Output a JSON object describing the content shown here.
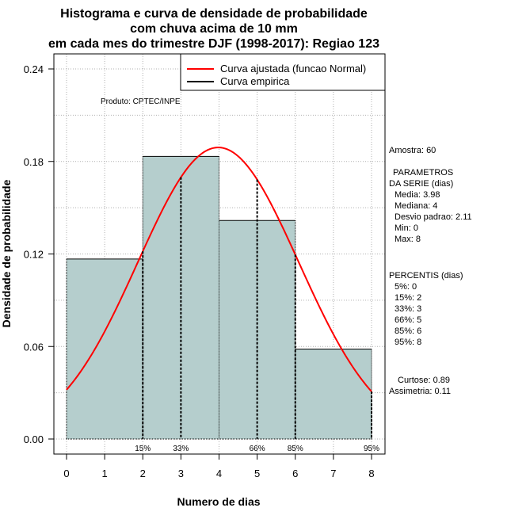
{
  "chart_data": {
    "type": "histogram",
    "title": [
      "Histograma e curva de densidade de probabilidade",
      "com chuva acima de 10 mm",
      "em cada mes do trimestre DJF (1998-2017): Regiao 123"
    ],
    "xlabel": "Numero de dias",
    "ylabel": "Densidade de probabilidade",
    "xlim": [
      0,
      8
    ],
    "ylim": [
      0,
      0.24
    ],
    "x_ticks": [
      "0",
      "1",
      "2",
      "3",
      "4",
      "5",
      "6",
      "7",
      "8"
    ],
    "y_ticks": [
      "0.00",
      "0.06",
      "0.12",
      "0.18",
      "0.24"
    ],
    "grid": true,
    "legend_position": "top-right",
    "bins": [
      {
        "start": 0,
        "end": 2,
        "density": 0.1167
      },
      {
        "start": 2,
        "end": 4,
        "density": 0.1833
      },
      {
        "start": 4,
        "end": 6,
        "density": 0.1417
      },
      {
        "start": 6,
        "end": 8,
        "density": 0.0583
      }
    ],
    "normal_fit": {
      "mean": 3.98,
      "sd": 2.11,
      "color": "#ff0000"
    },
    "percentiles": [
      {
        "label": "15%",
        "x": 2
      },
      {
        "label": "33%",
        "x": 3
      },
      {
        "label": "66%",
        "x": 5
      },
      {
        "label": "85%",
        "x": 6
      },
      {
        "label": "95%",
        "x": 8
      }
    ],
    "legend": [
      "Curva ajustada (funcao Normal)",
      "Curva empirica"
    ],
    "bar_color": "#b5cecd",
    "credit": "Produto: CPTEC/INPE"
  },
  "stats": {
    "amostra": "Amostra: 60",
    "header1": "PARAMETROS",
    "header2": "DA SERIE (dias)",
    "media": "Media: 3.98",
    "mediana": "Mediana: 4",
    "desvio": "Desvio padrao: 2.11",
    "min": "Min: 0",
    "max": "Max: 8",
    "perc_header": "PERCENTIS (dias)",
    "p5": "5%: 0",
    "p15": "15%: 2",
    "p33": "33%: 3",
    "p66": "66%: 5",
    "p85": "85%: 6",
    "p95": "95%: 8",
    "curtose": "Curtose: 0.89",
    "assimetria": "Assimetria: 0.11"
  }
}
